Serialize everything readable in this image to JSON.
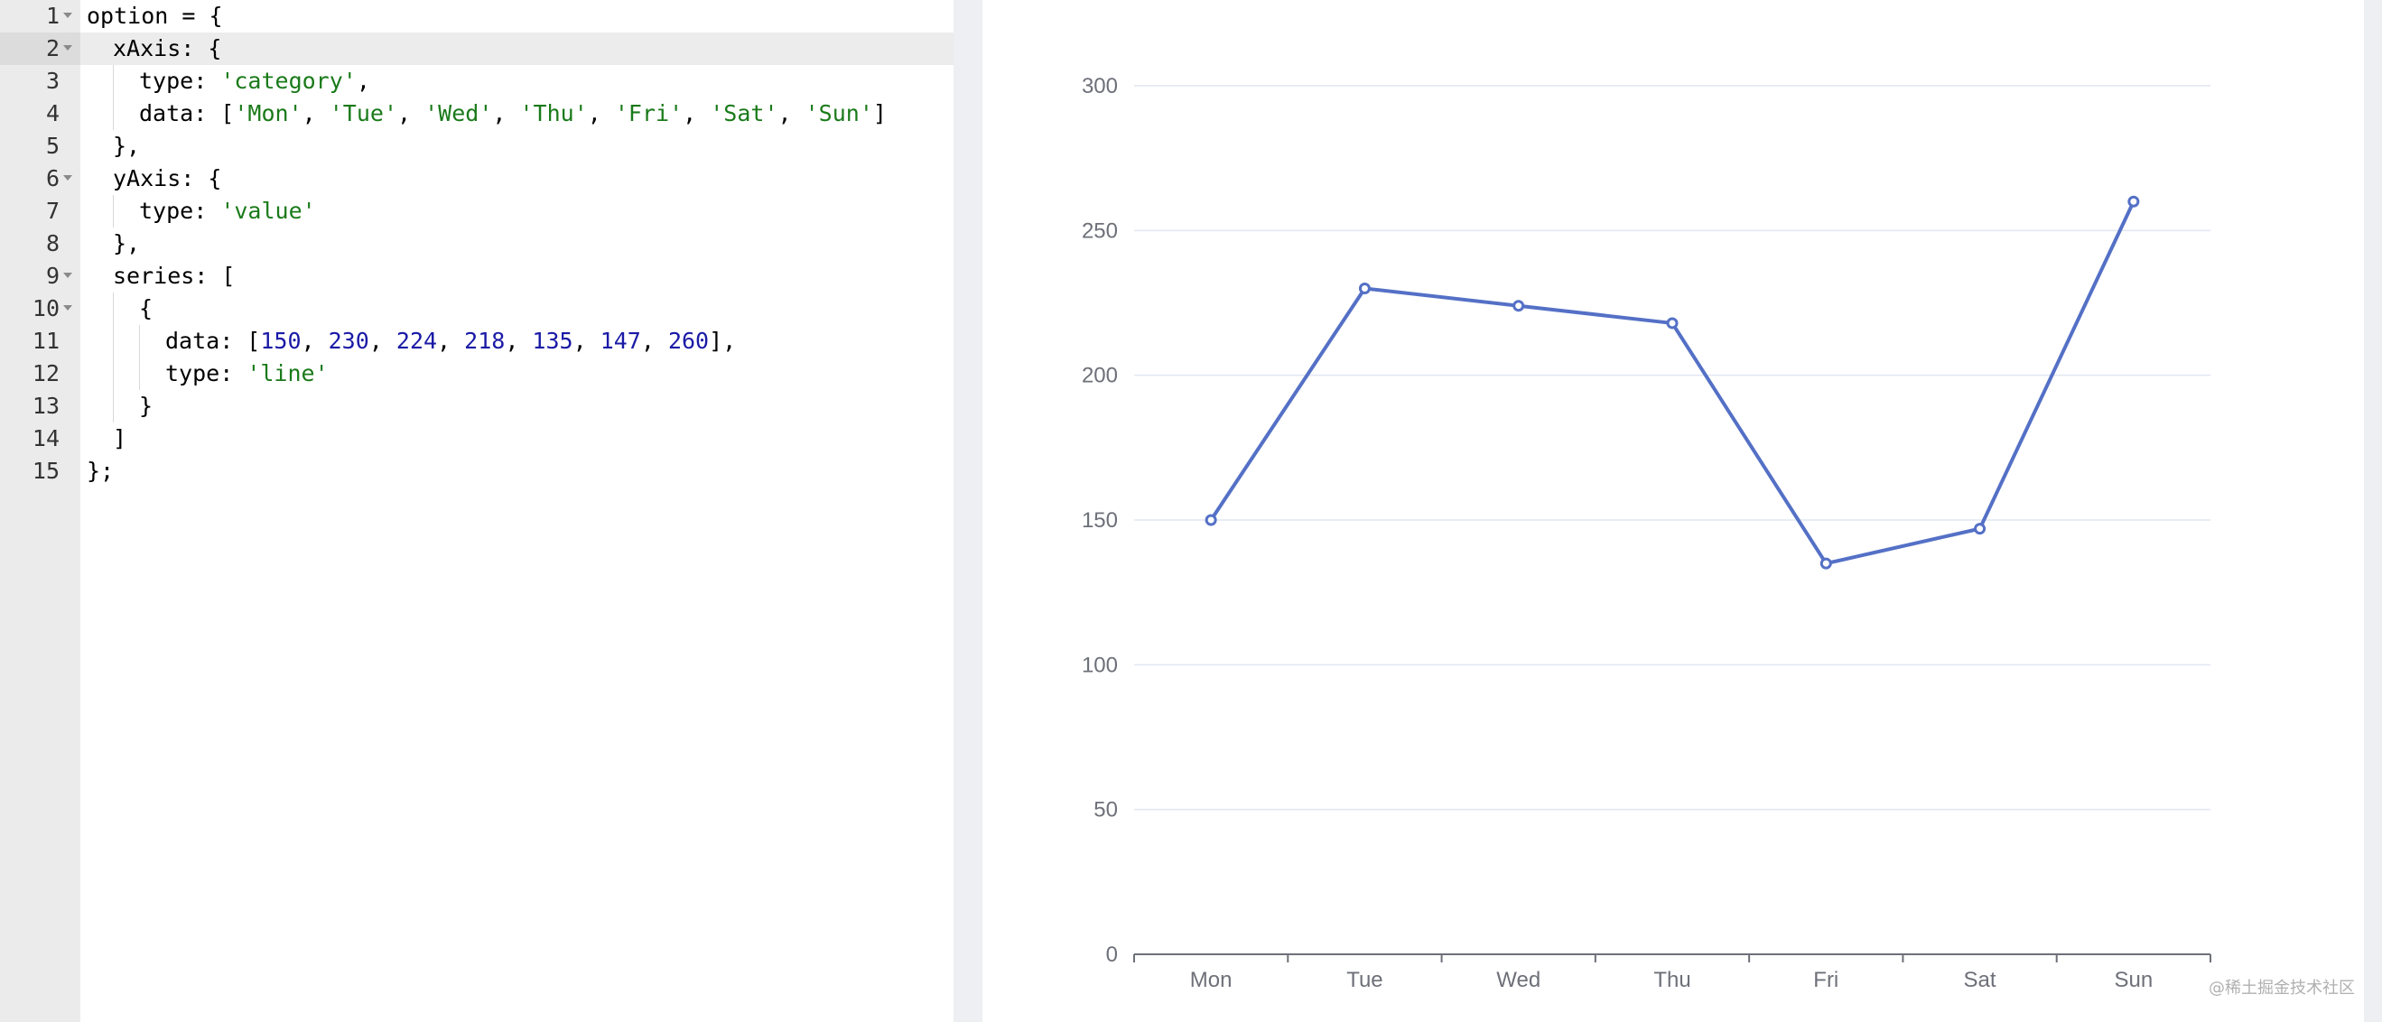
{
  "editor": {
    "active_line": 2,
    "lines": [
      {
        "n": "1",
        "fold": true,
        "indent": 0,
        "tokens": [
          {
            "t": "option = {",
            "c": "plain"
          }
        ]
      },
      {
        "n": "2",
        "fold": true,
        "indent": 1,
        "tokens": [
          {
            "t": "xAxis: {",
            "c": "plain"
          }
        ]
      },
      {
        "n": "3",
        "fold": false,
        "indent": 2,
        "tokens": [
          {
            "t": "type: ",
            "c": "plain"
          },
          {
            "t": "'category'",
            "c": "str"
          },
          {
            "t": ",",
            "c": "plain"
          }
        ]
      },
      {
        "n": "4",
        "fold": false,
        "indent": 2,
        "tokens": [
          {
            "t": "data: [",
            "c": "plain"
          },
          {
            "t": "'Mon'",
            "c": "str"
          },
          {
            "t": ", ",
            "c": "plain"
          },
          {
            "t": "'Tue'",
            "c": "str"
          },
          {
            "t": ", ",
            "c": "plain"
          },
          {
            "t": "'Wed'",
            "c": "str"
          },
          {
            "t": ", ",
            "c": "plain"
          },
          {
            "t": "'Thu'",
            "c": "str"
          },
          {
            "t": ", ",
            "c": "plain"
          },
          {
            "t": "'Fri'",
            "c": "str"
          },
          {
            "t": ", ",
            "c": "plain"
          },
          {
            "t": "'Sat'",
            "c": "str"
          },
          {
            "t": ", ",
            "c": "plain"
          },
          {
            "t": "'Sun'",
            "c": "str"
          },
          {
            "t": "]",
            "c": "plain"
          }
        ]
      },
      {
        "n": "5",
        "fold": false,
        "indent": 1,
        "tokens": [
          {
            "t": "},",
            "c": "plain"
          }
        ]
      },
      {
        "n": "6",
        "fold": true,
        "indent": 1,
        "tokens": [
          {
            "t": "yAxis: {",
            "c": "plain"
          }
        ]
      },
      {
        "n": "7",
        "fold": false,
        "indent": 2,
        "tokens": [
          {
            "t": "type: ",
            "c": "plain"
          },
          {
            "t": "'value'",
            "c": "str"
          }
        ]
      },
      {
        "n": "8",
        "fold": false,
        "indent": 1,
        "tokens": [
          {
            "t": "},",
            "c": "plain"
          }
        ]
      },
      {
        "n": "9",
        "fold": true,
        "indent": 1,
        "tokens": [
          {
            "t": "series: [",
            "c": "plain"
          }
        ]
      },
      {
        "n": "10",
        "fold": true,
        "indent": 2,
        "tokens": [
          {
            "t": "{",
            "c": "plain"
          }
        ]
      },
      {
        "n": "11",
        "fold": false,
        "indent": 3,
        "tokens": [
          {
            "t": "data: [",
            "c": "plain"
          },
          {
            "t": "150",
            "c": "num"
          },
          {
            "t": ", ",
            "c": "plain"
          },
          {
            "t": "230",
            "c": "num"
          },
          {
            "t": ", ",
            "c": "plain"
          },
          {
            "t": "224",
            "c": "num"
          },
          {
            "t": ", ",
            "c": "plain"
          },
          {
            "t": "218",
            "c": "num"
          },
          {
            "t": ", ",
            "c": "plain"
          },
          {
            "t": "135",
            "c": "num"
          },
          {
            "t": ", ",
            "c": "plain"
          },
          {
            "t": "147",
            "c": "num"
          },
          {
            "t": ", ",
            "c": "plain"
          },
          {
            "t": "260",
            "c": "num"
          },
          {
            "t": "],",
            "c": "plain"
          }
        ]
      },
      {
        "n": "12",
        "fold": false,
        "indent": 3,
        "tokens": [
          {
            "t": "type: ",
            "c": "plain"
          },
          {
            "t": "'line'",
            "c": "str"
          }
        ]
      },
      {
        "n": "13",
        "fold": false,
        "indent": 2,
        "tokens": [
          {
            "t": "}",
            "c": "plain"
          }
        ]
      },
      {
        "n": "14",
        "fold": false,
        "indent": 1,
        "tokens": [
          {
            "t": "]",
            "c": "plain"
          }
        ]
      },
      {
        "n": "15",
        "fold": false,
        "indent": 0,
        "tokens": [
          {
            "t": "};",
            "c": "plain"
          }
        ]
      }
    ]
  },
  "chart_data": {
    "type": "line",
    "categories": [
      "Mon",
      "Tue",
      "Wed",
      "Thu",
      "Fri",
      "Sat",
      "Sun"
    ],
    "series": [
      {
        "values": [
          150,
          230,
          224,
          218,
          135,
          147,
          260
        ],
        "color": "#5470c6"
      }
    ],
    "yticks": [
      0,
      50,
      100,
      150,
      200,
      250,
      300
    ],
    "ylim": [
      0,
      300
    ],
    "grid": true
  },
  "colors": {
    "line": "#5470c6",
    "grid": "#e0e6f1",
    "axis": "#6e7079",
    "label": "#6e7079",
    "string": "#1a7a1a",
    "number": "#1a1aa6"
  },
  "watermark": "@稀土掘金技术社区"
}
